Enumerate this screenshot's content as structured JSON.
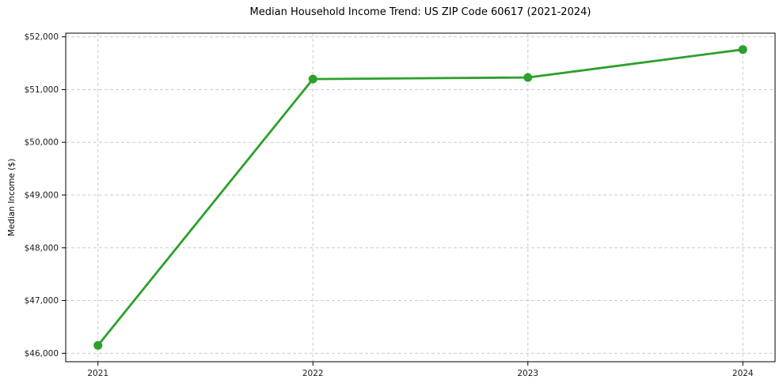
{
  "figure": {
    "background": "#ffffff"
  },
  "chart_data": {
    "type": "line",
    "title": "Median Household Income Trend: US ZIP Code 60617 (2021-2024)",
    "xlabel": "",
    "ylabel": "Median Income ($)",
    "x": [
      2021,
      2022,
      2023,
      2024
    ],
    "xtick_labels": [
      "2021",
      "2022",
      "2023",
      "2024"
    ],
    "series": [
      {
        "values": [
          46150,
          51200,
          51230,
          51760
        ],
        "color": "#2ca02c",
        "marker": "circle"
      }
    ],
    "xlim": [
      2020.85,
      2024.15
    ],
    "ylim": [
      45840,
      52070
    ],
    "yticks": [
      46000,
      47000,
      48000,
      49000,
      50000,
      51000,
      52000
    ],
    "ytick_labels": [
      "$46,000",
      "$47,000",
      "$48,000",
      "$49,000",
      "$50,000",
      "$51,000",
      "$52,000"
    ],
    "grid": {
      "visible": true,
      "style": "dashed",
      "color": "#cccccc"
    },
    "legend": {
      "visible": false
    },
    "axis_color": "#000000",
    "tick_label_color": "#1a1a1a"
  }
}
